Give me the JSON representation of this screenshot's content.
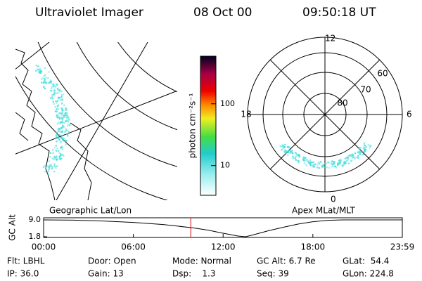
{
  "header": {
    "instrument": "Ultraviolet Imager",
    "date": "08 Oct 00",
    "time": "09:50:18 UT"
  },
  "colorbar": {
    "label": "photon cm⁻²s⁻¹",
    "lim": [
      3.3,
      590
    ],
    "ticks": [
      10,
      100
    ],
    "log": true
  },
  "map": {
    "label": "Geographic Lat/Lon"
  },
  "polar": {
    "label": "Apex MLat/MLT",
    "mlt_labels": [
      "12",
      "18",
      "6",
      "0"
    ],
    "lat_labels": [
      "80",
      "70",
      "60"
    ]
  },
  "chart_data": {
    "type": "line",
    "ylabel": "GC Alt",
    "color": "#000000",
    "x": [
      0,
      2,
      4,
      6,
      8,
      10,
      11,
      12,
      13,
      13.5,
      14,
      15,
      16,
      17,
      18,
      19,
      20,
      22,
      23.98
    ],
    "values": [
      9.0,
      8.9,
      8.5,
      7.9,
      7.0,
      5.6,
      4.6,
      3.3,
      2.1,
      1.8,
      2.6,
      4.3,
      5.8,
      7.2,
      8.2,
      8.8,
      9.0,
      9.0,
      9.0
    ],
    "xlim": [
      0,
      23.98
    ],
    "ylim": [
      1.8,
      9.0
    ],
    "yticks": [
      {
        "value": 9,
        "label": "9.0"
      },
      {
        "value": 1.8,
        "label": "1.8"
      }
    ],
    "xticks": [
      {
        "value": 0,
        "label": "00:00"
      },
      {
        "value": 6,
        "label": "06:00"
      },
      {
        "value": 12,
        "label": "12:00"
      },
      {
        "value": 18,
        "label": "18:00"
      },
      {
        "value": 23.98,
        "label": "23:59"
      }
    ],
    "marker_x": 9.84,
    "marker_color": "#e00000"
  },
  "footer": [
    [
      "Flt: LBHL",
      "Door: Open",
      "Mode: Normal",
      "GC Alt: 6.7 Re",
      "GLat:  54.4"
    ],
    [
      "IP: 36.0",
      "Gain: 13",
      "Dsp:    1.3",
      "Seq: 39",
      "GLon: 224.8"
    ]
  ]
}
